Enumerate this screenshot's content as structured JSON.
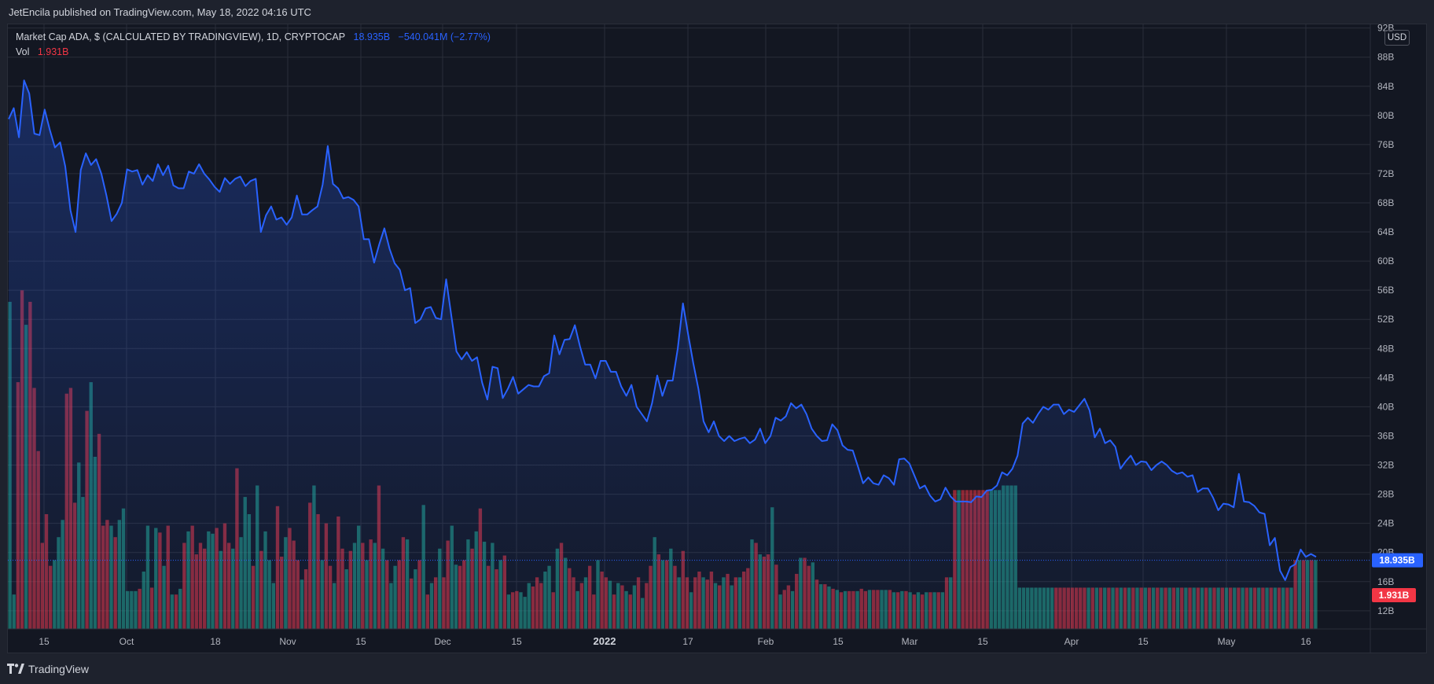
{
  "header": {
    "published": "JetEncila published on TradingView.com, May 18, 2022 04:16 UTC"
  },
  "legend": {
    "symbol": "Market Cap ADA, $ (CALCULATED BY TRADINGVIEW), 1D, CRYPTOCAP",
    "value": "18.935B",
    "change": "−540.041M (−2.77%)",
    "vol_label": "Vol",
    "vol_value": "1.931B"
  },
  "currency": "USD",
  "footer": {
    "brand": "TradingView"
  },
  "colors": {
    "line": "#2962ff",
    "up_volume": "#22ab94",
    "down_volume": "#f23645",
    "background": "#131722",
    "grid": "#2a2e39"
  },
  "chart_data": {
    "type": "line",
    "title": "",
    "series": [
      {
        "values": [
          79.5,
          81,
          77,
          84.8,
          83,
          77.5,
          77.3,
          80.8,
          78,
          75.6,
          76.3,
          73,
          67,
          64,
          72.5,
          74.8,
          73.2,
          74,
          72,
          69,
          65.5,
          66.5,
          68,
          72.6,
          72.3,
          72.5,
          70.5,
          71.8,
          71,
          73.3,
          71.8,
          73.1,
          70.4,
          70,
          70,
          72.3,
          72,
          73.3,
          72,
          71.2,
          70.2,
          69.5,
          71.4,
          70.6,
          71.3,
          71.6,
          70.3,
          71,
          71.3,
          64,
          66.3,
          67.5,
          65.7,
          66,
          65,
          66,
          69,
          66.4,
          66.4,
          67,
          67.5,
          70.5,
          75.8,
          70.6,
          70,
          68.6,
          68.8,
          68.4,
          67.5,
          63,
          63,
          59.8,
          62.3,
          64.5,
          61.7,
          59.7,
          58.8,
          56,
          56.3,
          51.5,
          52,
          53.5,
          53.7,
          52.2,
          52,
          57.5,
          52.5,
          47.6,
          46.5,
          47.5,
          46.3,
          46.8,
          43.3,
          41,
          45.5,
          45.3,
          41.2,
          42.5,
          44.1,
          41.8,
          42.4,
          43,
          42.8,
          42.8,
          44.2,
          44.6,
          49.8,
          47.2,
          49.2,
          49.3,
          51.2,
          48.3,
          45.8,
          45.8,
          43.9,
          46.3,
          46.3,
          44.8,
          44.8,
          42.8,
          41.5,
          43,
          40,
          39,
          38,
          40.5,
          44.3,
          41.5,
          43.6,
          43.6,
          48,
          54.2,
          50,
          46,
          42.5,
          38,
          36.5,
          38,
          36,
          35.3,
          36,
          35.3,
          35.6,
          35.8,
          35,
          35.5,
          37,
          35,
          36,
          38.5,
          38.1,
          38.7,
          40.5,
          39.8,
          40.3,
          39,
          37,
          36,
          35.3,
          35.4,
          37.6,
          36.8,
          34.7,
          34.1,
          34,
          31.8,
          29.5,
          30.3,
          29.5,
          29.3,
          30.6,
          30.2,
          29.3,
          32.8,
          32.9,
          32.2,
          30.5,
          28.8,
          29.2,
          27.8,
          27,
          27.3,
          28.9,
          27.7,
          27,
          27,
          27,
          26.9,
          27.7,
          27.6,
          28.5,
          28.6,
          29.2,
          31,
          30.6,
          31.5,
          33.3,
          37.7,
          38.5,
          37.8,
          39,
          40,
          39.6,
          40.3,
          40.3,
          39,
          39.6,
          39.3,
          40.2,
          41.1,
          39.5,
          35.8,
          37,
          35,
          35.4,
          34.5,
          31.5,
          32.5,
          33.3,
          32,
          32.5,
          32.4,
          31.3,
          32,
          32.5,
          32,
          31.2,
          30.8,
          31,
          30.4,
          30.6,
          28.3,
          28.8,
          28.8,
          27.5,
          25.8,
          26.7,
          26.6,
          26.2,
          30.8,
          27,
          26.9,
          26.4,
          25.5,
          25.3,
          21,
          22,
          17.5,
          16.2,
          18,
          18.4,
          20.4,
          19.4,
          19.8,
          19.4
        ]
      }
    ],
    "volume": {
      "values": [
        2.85,
        0.3,
        2.15,
        2.95,
        2.65,
        2.85,
        2.1,
        1.55,
        0.75,
        1.0,
        0.55,
        0.6,
        0.8,
        0.95,
        2.05,
        2.1,
        1.1,
        1.45,
        1.15,
        1.9,
        2.15,
        1.5,
        1.7,
        0.9,
        0.95,
        0.9,
        0.8,
        0.95,
        1.05,
        0.33,
        0.33,
        0.33,
        0.35,
        0.5,
        0.9,
        0.36,
        0.88,
        0.84,
        0.55,
        0.9,
        0.3,
        0.3,
        0.35,
        0.75,
        0.85,
        0.9,
        0.65,
        0.75,
        0.7,
        0.85,
        0.83,
        0.88,
        0.68,
        0.92,
        0.75,
        0.7,
        1.4,
        0.8,
        1.15,
        1.0,
        0.55,
        1.25,
        0.68,
        0.85,
        0.6,
        0.4,
        1.07,
        0.63,
        0.8,
        0.88,
        0.77,
        0.6,
        0.43,
        0.52,
        1.1,
        1.25,
        1.0,
        0.6,
        0.92,
        0.55,
        0.4,
        0.98,
        0.7,
        0.52,
        0.68,
        0.75,
        0.9,
        0.75,
        0.6,
        0.78,
        0.75,
        1.25,
        0.7,
        0.6,
        0.4,
        0.55,
        0.6,
        0.8,
        0.78,
        0.44,
        0.52,
        0.6,
        1.08,
        0.3,
        0.4,
        0.45,
        0.7,
        0.45,
        0.77,
        0.9,
        0.56,
        0.55,
        0.6,
        0.78,
        0.7,
        0.85,
        1.05,
        0.76,
        0.55,
        0.75,
        0.52,
        0.6,
        0.64,
        0.3,
        0.32,
        0.33,
        0.32,
        0.28,
        0.4,
        0.37,
        0.45,
        0.4,
        0.5,
        0.55,
        0.32,
        0.7,
        0.75,
        0.62,
        0.53,
        0.45,
        0.33,
        0.4,
        0.45,
        0.55,
        0.3,
        0.6,
        0.5,
        0.45,
        0.42,
        0.3,
        0.4,
        0.38,
        0.33,
        0.3,
        0.38,
        0.45,
        0.27,
        0.4,
        0.55,
        0.8,
        0.65,
        0.6,
        0.6,
        0.7,
        0.55,
        0.45,
        0.68,
        0.45,
        0.32,
        0.45,
        0.5,
        0.45,
        0.43,
        0.5,
        0.4,
        0.38,
        0.45,
        0.48,
        0.38,
        0.45,
        0.45,
        0.5,
        0.53,
        0.78,
        0.75,
        0.65,
        0.63,
        0.65,
        1.06,
        0.56,
        0.3,
        0.34,
        0.38,
        0.33,
        0.48,
        0.62,
        0.62,
        0.55,
        0.58,
        0.43,
        0.39,
        0.39,
        0.37,
        0.35,
        0.34,
        0.32,
        0.33,
        0.33,
        0.33,
        0.33,
        0.35,
        0.33,
        0.34,
        0.34,
        0.34,
        0.34,
        0.34,
        0.34,
        0.32,
        0.32,
        0.33,
        0.33,
        0.32,
        0.3,
        0.32,
        0.3,
        0.32,
        0.32,
        0.32,
        0.32,
        0.32,
        0.45,
        0.45,
        1.21,
        1.21,
        1.21,
        1.21,
        1.21,
        1.21,
        1.21,
        1.21,
        1.21,
        1.21,
        1.21,
        1.21,
        1.25,
        1.25,
        1.25,
        1.25,
        0.36,
        0.36,
        0.36,
        0.36,
        0.36,
        0.36,
        0.36,
        0.36,
        0.36,
        0.36,
        0.36,
        0.36,
        0.36,
        0.36,
        0.36,
        0.36,
        0.36,
        0.36,
        0.36,
        0.36,
        0.36,
        0.36,
        0.36,
        0.36,
        0.36,
        0.36,
        0.36,
        0.36,
        0.36,
        0.36,
        0.36,
        0.36,
        0.36,
        0.36,
        0.36,
        0.36,
        0.36,
        0.36,
        0.36,
        0.36,
        0.36,
        0.36,
        0.36,
        0.36,
        0.36,
        0.36,
        0.36,
        0.36,
        0.36,
        0.36,
        0.36,
        0.36,
        0.36,
        0.36,
        0.36,
        0.36,
        0.36,
        0.36,
        0.36,
        0.36,
        0.36,
        0.36,
        0.36,
        0.36,
        0.36,
        0.36,
        0.36,
        0.36,
        0.6,
        0.6,
        0.6,
        0.6,
        0.6,
        0.6
      ],
      "up_indices": [
        0,
        1,
        4,
        11,
        12,
        13,
        17,
        18,
        20,
        21,
        25,
        27,
        28,
        29,
        30,
        31,
        33,
        34,
        36,
        38,
        40,
        42,
        44,
        49,
        50,
        52,
        55,
        57,
        58,
        59,
        61,
        63,
        64,
        65,
        68,
        72,
        75,
        77,
        80,
        83,
        85,
        86,
        88,
        90,
        92,
        94,
        95,
        98,
        100,
        102,
        104,
        106,
        109,
        110,
        113,
        115,
        117,
        119,
        121,
        123,
        126,
        127,
        128,
        132,
        133,
        135,
        137,
        140,
        142,
        145,
        148,
        150,
        152,
        154,
        156,
        159,
        161,
        163,
        165,
        168,
        171,
        174,
        176,
        178,
        180,
        183,
        185,
        188,
        190,
        193,
        195,
        198,
        200,
        202,
        204,
        206,
        209,
        212,
        215,
        216,
        218,
        220,
        222,
        224,
        226,
        228,
        230,
        232,
        234,
        242,
        243,
        244,
        245,
        246,
        247,
        248,
        249,
        250,
        251,
        252,
        253,
        254,
        255,
        256,
        257,
        266,
        268,
        270,
        272,
        274,
        276,
        278,
        280,
        282,
        284,
        286,
        288,
        290,
        292,
        294,
        296,
        298,
        300,
        302,
        304,
        306,
        308,
        310,
        312,
        314,
        316,
        318,
        320,
        322,
        324,
        326,
        328,
        330,
        332,
        334,
        336,
        338,
        340
      ]
    },
    "y_axis": {
      "labels": [
        "12B",
        "16B",
        "20B",
        "24B",
        "28B",
        "32B",
        "36B",
        "40B",
        "44B",
        "48B",
        "52B",
        "56B",
        "60B",
        "64B",
        "68B",
        "72B",
        "76B",
        "80B",
        "84B",
        "88B",
        "92B"
      ],
      "range": [
        9.5,
        92.5
      ]
    },
    "x_axis": {
      "labels": [
        "15",
        "Oct",
        "18",
        "Nov",
        "15",
        "Dec",
        "15",
        "2022",
        "17",
        "Feb",
        "15",
        "Mar",
        "15",
        "Apr",
        "15",
        "May",
        "16"
      ],
      "bold_label": "2022"
    },
    "last_value_label": "18.935B",
    "last_value": 18.935,
    "volume_label": "1.931B",
    "grid": true
  }
}
